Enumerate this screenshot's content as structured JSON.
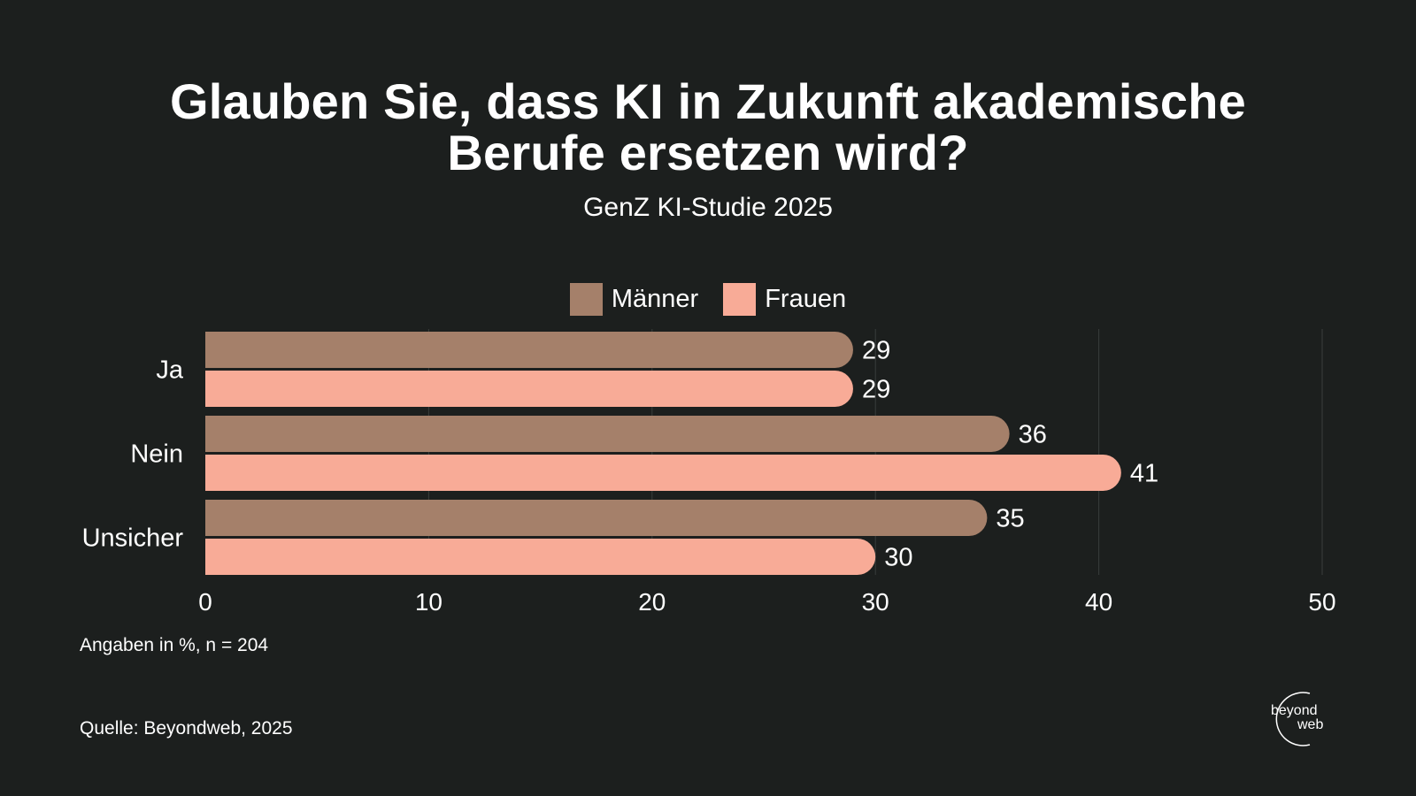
{
  "title_line1": "Glauben Sie, dass KI in Zukunft akademische",
  "title_line2": "Berufe ersetzen wird?",
  "subtitle": "GenZ KI-Studie 2025",
  "note": "Angaben in %, n = 204",
  "source": "Quelle: Beyondweb, 2025",
  "logo": {
    "line1": "beyond",
    "line2": "web"
  },
  "colors": {
    "background": "#1c1f1e",
    "maenner": "#a5806a",
    "frauen": "#f8ab97",
    "grid": "#3a3d3c"
  },
  "chart_data": {
    "type": "bar",
    "orientation": "horizontal",
    "categories": [
      "Ja",
      "Nein",
      "Unsicher"
    ],
    "series": [
      {
        "name": "Männer",
        "values": [
          29,
          36,
          35
        ],
        "color": "#a5806a"
      },
      {
        "name": "Frauen",
        "values": [
          29,
          41,
          30
        ],
        "color": "#f8ab97"
      }
    ],
    "xlim": [
      0,
      50
    ],
    "xticks": [
      0,
      10,
      20,
      30,
      40,
      50
    ],
    "legend": "top-center",
    "grid": "vertical"
  }
}
